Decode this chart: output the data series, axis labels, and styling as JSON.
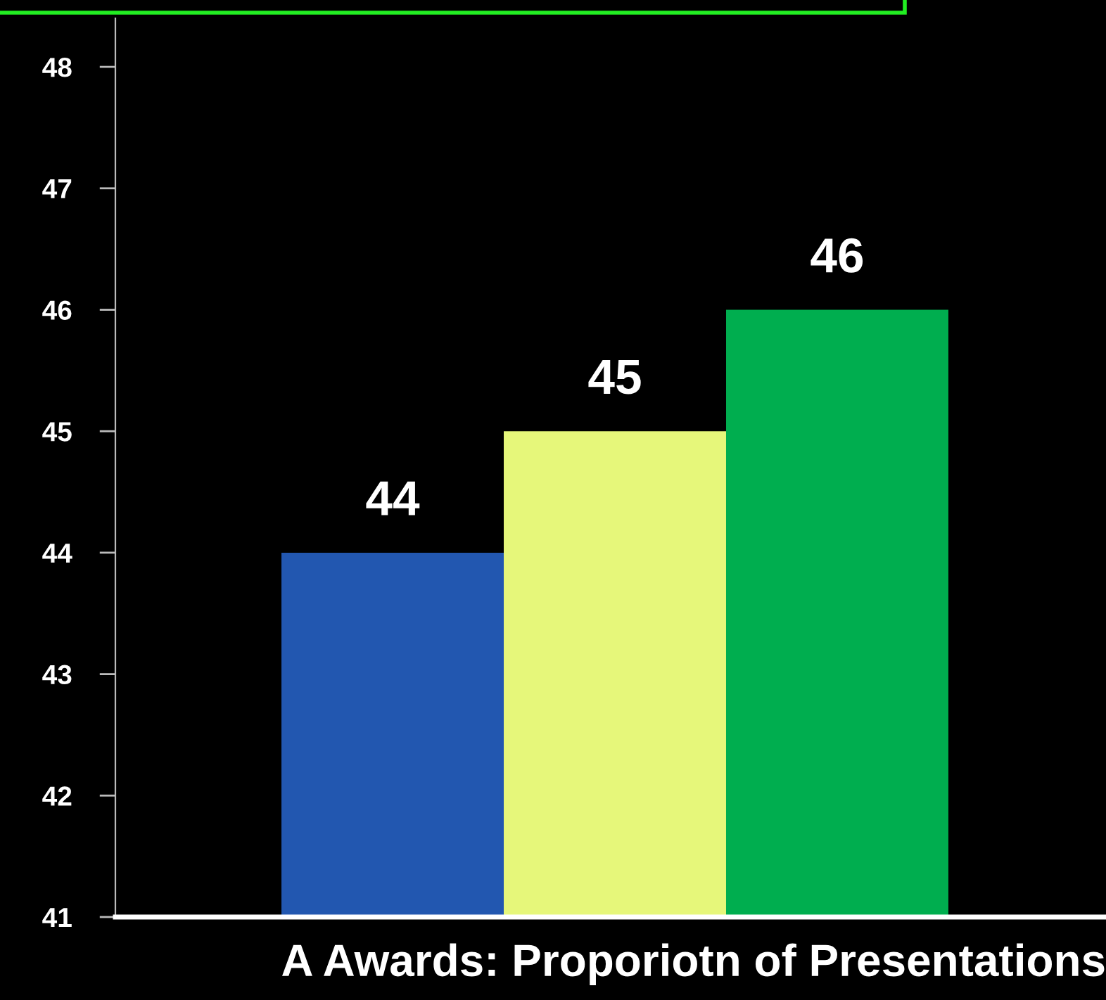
{
  "chart_data": {
    "type": "bar",
    "xlabel": "A Awards: Proporiotn of Presentations",
    "categories": [
      null,
      null,
      null
    ],
    "values": [
      44,
      45,
      46
    ],
    "colors": [
      "#2257b0",
      "#e6f77a",
      "#00ae4f"
    ],
    "ylim": [
      41,
      48.4
    ],
    "yticks": [
      41,
      42,
      43,
      44,
      45,
      46,
      47,
      48
    ],
    "data_labels": true,
    "grid": false
  }
}
